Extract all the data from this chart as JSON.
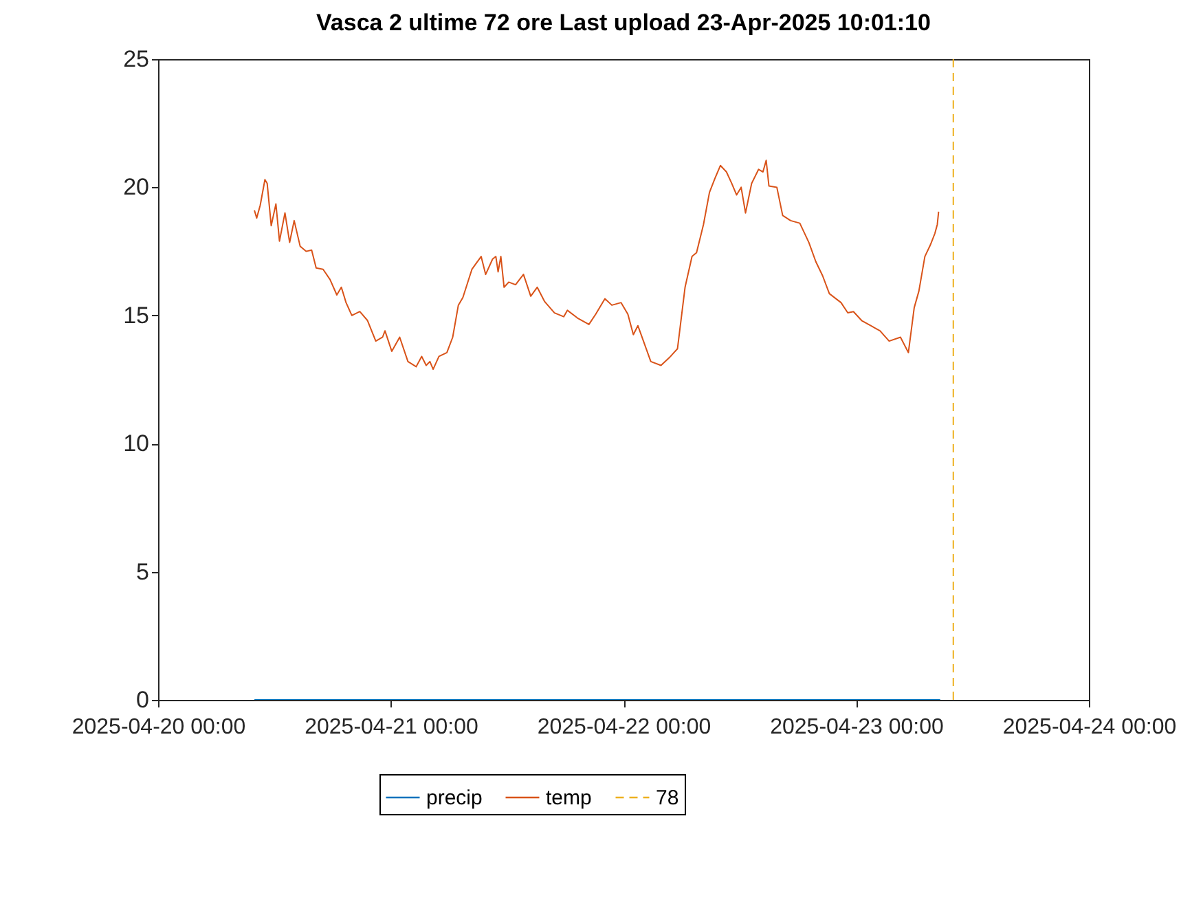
{
  "chart_data": {
    "type": "line",
    "title": "Vasca 2  ultime 72  ore Last upload  23-Apr-2025 10:01:10",
    "legend": "bottom",
    "grid": false,
    "xlim": [
      "2025-04-20",
      "2025-04-24"
    ],
    "xticks": [
      {
        "value": "2025-04-20",
        "label": "2025-04-20 00:00"
      },
      {
        "value": "2025-04-21",
        "label": "2025-04-21 00:00"
      },
      {
        "value": "2025-04-22",
        "label": "2025-04-22 00:00"
      },
      {
        "value": "2025-04-23",
        "label": "2025-04-23 00:00"
      },
      {
        "value": "2025-04-24",
        "label": "2025-04-24 00:00"
      }
    ],
    "ylim": [
      0,
      25
    ],
    "yticks": [
      0,
      5,
      10,
      15,
      20,
      25
    ],
    "series": [
      {
        "name": "precip",
        "color": "#0072bd",
        "line_style": "solid",
        "x": [
          "2025-04-20T09:56",
          "2025-04-23T08:40"
        ],
        "values": [
          0,
          0
        ]
      },
      {
        "name": "temp",
        "color": "#d95319",
        "line_style": "solid",
        "x": [
          "2025-04-20T09:56",
          "2025-04-20T10:10",
          "2025-04-20T10:32",
          "2025-04-20T11:01",
          "2025-04-20T11:15",
          "2025-04-20T11:40",
          "2025-04-20T12:09",
          "2025-04-20T12:31",
          "2025-04-20T13:05",
          "2025-04-20T13:34",
          "2025-04-20T14:02",
          "2025-04-20T14:39",
          "2025-04-20T15:16",
          "2025-04-20T15:50",
          "2025-04-20T16:18",
          "2025-04-20T17:01",
          "2025-04-20T17:44",
          "2025-04-20T18:26",
          "2025-04-20T18:54",
          "2025-04-20T19:23",
          "2025-04-20T19:59",
          "2025-04-20T20:48",
          "2025-04-20T21:36",
          "2025-04-20T22:27",
          "2025-04-20T23:09",
          "2025-04-20T23:24",
          "2025-04-21T00:06",
          "2025-04-21T00:55",
          "2025-04-21T01:46",
          "2025-04-21T02:37",
          "2025-04-21T03:11",
          "2025-04-21T03:39",
          "2025-04-21T04:02",
          "2025-04-21T04:22",
          "2025-04-21T04:58",
          "2025-04-21T05:47",
          "2025-04-21T06:23",
          "2025-04-21T06:58",
          "2025-04-21T07:26",
          "2025-04-21T07:54",
          "2025-04-21T08:22",
          "2025-04-21T09:19",
          "2025-04-21T09:47",
          "2025-04-21T10:30",
          "2025-04-21T10:50",
          "2025-04-21T11:04",
          "2025-04-21T11:21",
          "2025-04-21T11:41",
          "2025-04-21T12:10",
          "2025-04-21T12:52",
          "2025-04-21T13:41",
          "2025-04-21T14:26",
          "2025-04-21T15:06",
          "2025-04-21T15:51",
          "2025-04-21T16:53",
          "2025-04-21T17:50",
          "2025-04-21T18:13",
          "2025-04-21T19:15",
          "2025-04-21T20:26",
          "2025-04-21T21:08",
          "2025-04-21T22:05",
          "2025-04-21T22:48",
          "2025-04-21T23:45",
          "2025-04-22T00:27",
          "2025-04-22T01:01",
          "2025-04-22T01:29",
          "2025-04-22T01:52",
          "2025-04-22T02:49",
          "2025-04-22T03:52",
          "2025-04-22T04:43",
          "2025-04-22T05:34",
          "2025-04-22T06:21",
          "2025-04-22T07:04",
          "2025-04-22T07:32",
          "2025-04-22T08:15",
          "2025-04-22T08:52",
          "2025-04-22T09:26",
          "2025-04-22T10:00",
          "2025-04-22T10:37",
          "2025-04-22T11:10",
          "2025-04-22T11:40",
          "2025-04-22T12:08",
          "2025-04-22T12:35",
          "2025-04-22T13:13",
          "2025-04-22T13:56",
          "2025-04-22T14:23",
          "2025-04-22T14:43",
          "2025-04-22T15:00",
          "2025-04-22T15:49",
          "2025-04-22T16:25",
          "2025-04-22T17:14",
          "2025-04-22T18:11",
          "2025-04-22T19:07",
          "2025-04-22T19:50",
          "2025-04-22T20:32",
          "2025-04-22T21:14",
          "2025-04-22T22:26",
          "2025-04-22T23:08",
          "2025-04-22T23:43",
          "2025-04-23T00:34",
          "2025-04-23T01:30",
          "2025-04-23T02:27",
          "2025-04-23T03:24",
          "2025-04-23T04:34",
          "2025-04-23T05:23",
          "2025-04-23T05:59",
          "2025-04-23T06:28",
          "2025-04-23T07:05",
          "2025-04-23T07:39",
          "2025-04-23T08:07",
          "2025-04-23T08:22",
          "2025-04-23T08:30"
        ],
        "values": [
          19.1,
          18.8,
          19.3,
          20.3,
          20.15,
          18.5,
          19.35,
          17.9,
          19.0,
          17.85,
          18.7,
          17.7,
          17.5,
          17.55,
          16.85,
          16.8,
          16.4,
          15.8,
          16.1,
          15.5,
          15.0,
          15.15,
          14.8,
          14.0,
          14.15,
          14.4,
          13.6,
          14.15,
          13.2,
          13.0,
          13.4,
          13.05,
          13.2,
          12.9,
          13.4,
          13.55,
          14.15,
          15.4,
          15.7,
          16.25,
          16.8,
          17.3,
          16.6,
          17.2,
          17.3,
          16.7,
          17.3,
          16.1,
          16.3,
          16.2,
          16.6,
          15.75,
          16.1,
          15.55,
          15.1,
          14.95,
          15.2,
          14.9,
          14.65,
          15.05,
          15.65,
          15.4,
          15.5,
          15.05,
          14.25,
          14.6,
          14.2,
          13.2,
          13.05,
          13.35,
          13.7,
          16.1,
          17.3,
          17.45,
          18.55,
          19.8,
          20.35,
          20.85,
          20.6,
          20.15,
          19.7,
          20.0,
          19.0,
          20.15,
          20.7,
          20.6,
          21.05,
          20.05,
          20.0,
          18.9,
          18.7,
          18.6,
          17.85,
          17.1,
          16.55,
          15.85,
          15.5,
          15.1,
          15.15,
          14.8,
          14.6,
          14.4,
          14.0,
          14.15,
          13.55,
          15.3,
          15.95,
          17.3,
          17.75,
          18.2,
          18.55,
          19.05
        ]
      },
      {
        "name": "78",
        "color": "#edb120",
        "line_style": "dashed",
        "x": [
          "2025-04-23T10:01",
          "2025-04-23T10:01"
        ],
        "values": [
          0,
          25
        ]
      }
    ]
  }
}
